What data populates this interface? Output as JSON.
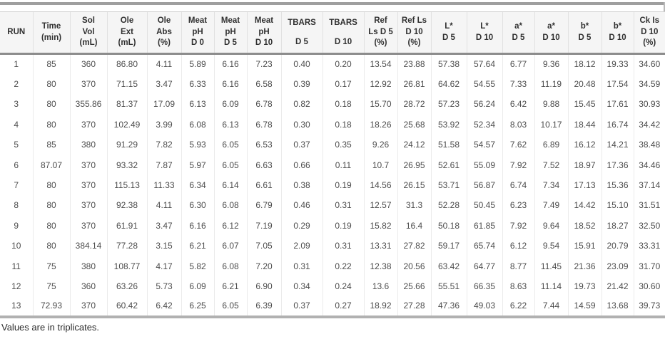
{
  "table": {
    "columns": [
      {
        "id": "run",
        "lines": [
          "RUN"
        ]
      },
      {
        "id": "time",
        "lines": [
          "Time",
          "(min)"
        ]
      },
      {
        "id": "sol_vol",
        "lines": [
          "Sol",
          "Vol",
          "(mL)"
        ]
      },
      {
        "id": "ole_ext",
        "lines": [
          "Ole",
          "Ext",
          "(mL)"
        ]
      },
      {
        "id": "ole_abs",
        "lines": [
          "Ole",
          "Abs",
          "(%)"
        ]
      },
      {
        "id": "meat_ph_d0",
        "lines": [
          "Meat",
          "pH",
          "D 0"
        ]
      },
      {
        "id": "meat_ph_d5",
        "lines": [
          "Meat",
          "pH",
          "D 5"
        ]
      },
      {
        "id": "meat_ph_d10",
        "lines": [
          "Meat",
          "pH",
          "D 10"
        ]
      },
      {
        "id": "tbars_d5",
        "lines": [
          "TBARS",
          "D 5"
        ]
      },
      {
        "id": "tbars_d10",
        "lines": [
          "TBARS",
          "D 10"
        ]
      },
      {
        "id": "ref_ls_d5",
        "lines": [
          "Ref",
          "Ls D 5",
          "(%)"
        ]
      },
      {
        "id": "ref_ls_d10",
        "lines": [
          "Ref Ls",
          "D 10",
          "(%)"
        ]
      },
      {
        "id": "l_star_d5",
        "lines": [
          "L*",
          "D 5"
        ]
      },
      {
        "id": "l_star_d10",
        "lines": [
          "L*",
          "D 10"
        ]
      },
      {
        "id": "a_star_d5",
        "lines": [
          "a*",
          "D 5"
        ]
      },
      {
        "id": "a_star_d10",
        "lines": [
          "a*",
          "D 10"
        ]
      },
      {
        "id": "b_star_d5",
        "lines": [
          "b*",
          "D 5"
        ]
      },
      {
        "id": "b_star_d10",
        "lines": [
          "b*",
          "D 10"
        ]
      },
      {
        "id": "ck_is_d10",
        "lines": [
          "Ck Is",
          "D 10",
          "(%)"
        ]
      }
    ],
    "rows": [
      [
        "1",
        "85",
        "360",
        "86.80",
        "4.11",
        "5.89",
        "6.16",
        "7.23",
        "0.40",
        "0.20",
        "13.54",
        "23.88",
        "57.38",
        "57.64",
        "6.77",
        "9.36",
        "18.12",
        "19.33",
        "34.60"
      ],
      [
        "2",
        "80",
        "370",
        "71.15",
        "3.47",
        "6.33",
        "6.16",
        "6.58",
        "0.39",
        "0.17",
        "12.92",
        "26.81",
        "64.62",
        "54.55",
        "7.33",
        "11.19",
        "20.48",
        "17.54",
        "34.59"
      ],
      [
        "3",
        "80",
        "355.86",
        "81.37",
        "17.09",
        "6.13",
        "6.09",
        "6.78",
        "0.82",
        "0.18",
        "15.70",
        "28.72",
        "57.23",
        "56.24",
        "6.42",
        "9.88",
        "15.45",
        "17.61",
        "30.93"
      ],
      [
        "4",
        "80",
        "370",
        "102.49",
        "3.99",
        "6.08",
        "6.13",
        "6.78",
        "0.30",
        "0.18",
        "18.26",
        "25.68",
        "53.92",
        "52.34",
        "8.03",
        "10.17",
        "18.44",
        "16.74",
        "34.42"
      ],
      [
        "5",
        "85",
        "380",
        "91.29",
        "7.82",
        "5.93",
        "6.05",
        "6.53",
        "0.37",
        "0.35",
        "9.26",
        "24.12",
        "51.58",
        "54.57",
        "7.62",
        "6.89",
        "16.12",
        "14.21",
        "38.48"
      ],
      [
        "6",
        "87.07",
        "370",
        "93.32",
        "7.87",
        "5.97",
        "6.05",
        "6.63",
        "0.66",
        "0.11",
        "10.7",
        "26.95",
        "52.61",
        "55.09",
        "7.92",
        "7.52",
        "18.97",
        "17.36",
        "34.46"
      ],
      [
        "7",
        "80",
        "370",
        "115.13",
        "11.33",
        "6.34",
        "6.14",
        "6.61",
        "0.38",
        "0.19",
        "14.56",
        "26.15",
        "53.71",
        "56.87",
        "6.74",
        "7.34",
        "17.13",
        "15.36",
        "37.14"
      ],
      [
        "8",
        "80",
        "370",
        "92.38",
        "4.11",
        "6.30",
        "6.08",
        "6.79",
        "0.46",
        "0.31",
        "12.57",
        "31.3",
        "52.28",
        "50.45",
        "6.23",
        "7.49",
        "14.42",
        "15.10",
        "31.51"
      ],
      [
        "9",
        "80",
        "370",
        "61.91",
        "3.47",
        "6.16",
        "6.12",
        "7.19",
        "0.29",
        "0.19",
        "15.82",
        "16.4",
        "50.18",
        "61.85",
        "7.92",
        "9.64",
        "18.52",
        "18.27",
        "32.50"
      ],
      [
        "10",
        "80",
        "384.14",
        "77.28",
        "3.15",
        "6.21",
        "6.07",
        "7.05",
        "2.09",
        "0.31",
        "13.31",
        "27.82",
        "59.17",
        "65.74",
        "6.12",
        "9.54",
        "15.91",
        "20.79",
        "33.31"
      ],
      [
        "11",
        "75",
        "380",
        "108.77",
        "4.17",
        "5.82",
        "6.08",
        "7.20",
        "0.31",
        "0.22",
        "12.38",
        "20.56",
        "63.42",
        "64.77",
        "8.77",
        "11.45",
        "21.36",
        "23.09",
        "31.70"
      ],
      [
        "12",
        "75",
        "360",
        "63.26",
        "5.73",
        "6.09",
        "6.21",
        "6.90",
        "0.34",
        "0.24",
        "13.6",
        "25.66",
        "55.51",
        "66.35",
        "8.63",
        "11.14",
        "19.73",
        "21.42",
        "30.60"
      ],
      [
        "13",
        "72.93",
        "370",
        "60.42",
        "6.42",
        "6.25",
        "6.05",
        "6.39",
        "0.37",
        "0.27",
        "18.92",
        "27.28",
        "47.36",
        "49.03",
        "6.22",
        "7.44",
        "14.59",
        "13.68",
        "39.73"
      ]
    ],
    "footnote": "Values are in triplicates."
  },
  "colors": {
    "rule_top": "#9f9f9f",
    "rule_header_bottom": "#8c8c8c",
    "rule_bottom": "#b1b1b1",
    "header_bg": "#f5f5f5",
    "header_text": "#303030",
    "cell_text": "#4d4d4d"
  }
}
